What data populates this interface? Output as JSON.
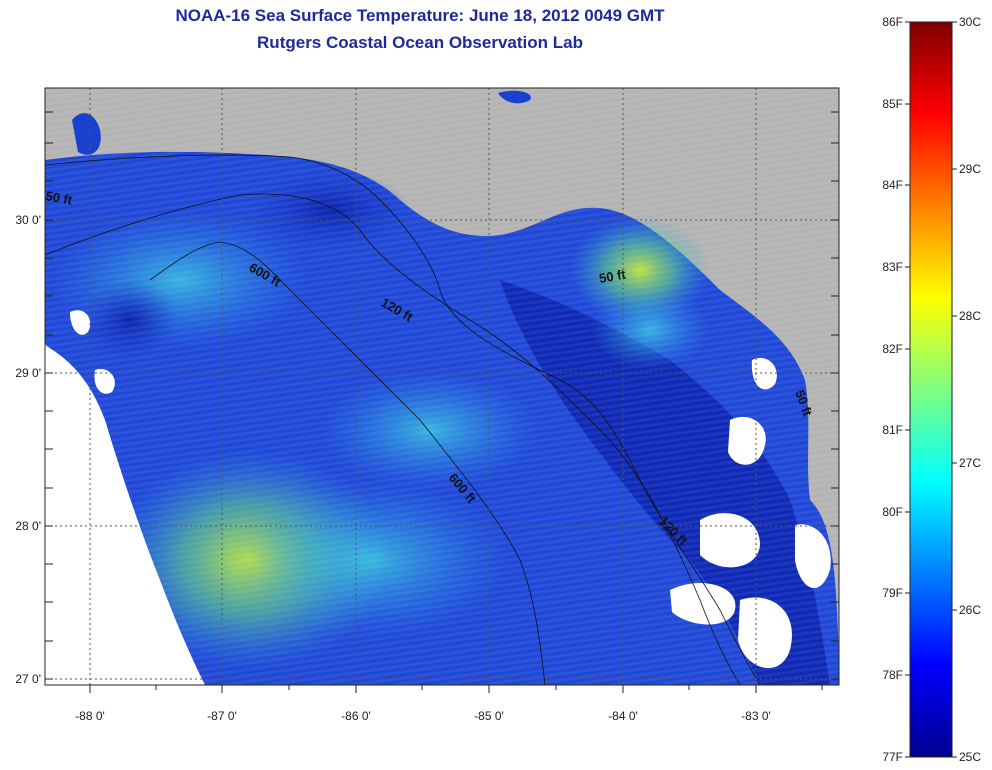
{
  "title": "NOAA-16 Sea Surface Temperature:  June 18, 2012 0049 GMT",
  "subtitle": "Rutgers Coastal Ocean Observation Lab",
  "map": {
    "lon_ticks": [
      "-88 0'",
      "-87 0'",
      "-86 0'",
      "-85 0'",
      "-84 0'",
      "-83 0'"
    ],
    "lat_ticks": [
      "30 0'",
      "29 0'",
      "28 0'",
      "27 0'"
    ],
    "contour_labels": [
      "50 ft",
      "600 ft",
      "120 ft",
      "50 ft",
      "600 ft",
      "120 ft",
      "50 ft"
    ],
    "colors": {
      "land": "#b4b4b4",
      "cloud": "#ffffff",
      "ocean_deep": "#1d3fd6",
      "ocean_warm": "#9fe04a"
    }
  },
  "colorbar": {
    "f_labels": [
      "86F",
      "85F",
      "84F",
      "83F",
      "82F",
      "81F",
      "80F",
      "79F",
      "78F",
      "77F"
    ],
    "c_labels": [
      "30C",
      "29C",
      "28C",
      "27C",
      "26C",
      "25C"
    ]
  }
}
